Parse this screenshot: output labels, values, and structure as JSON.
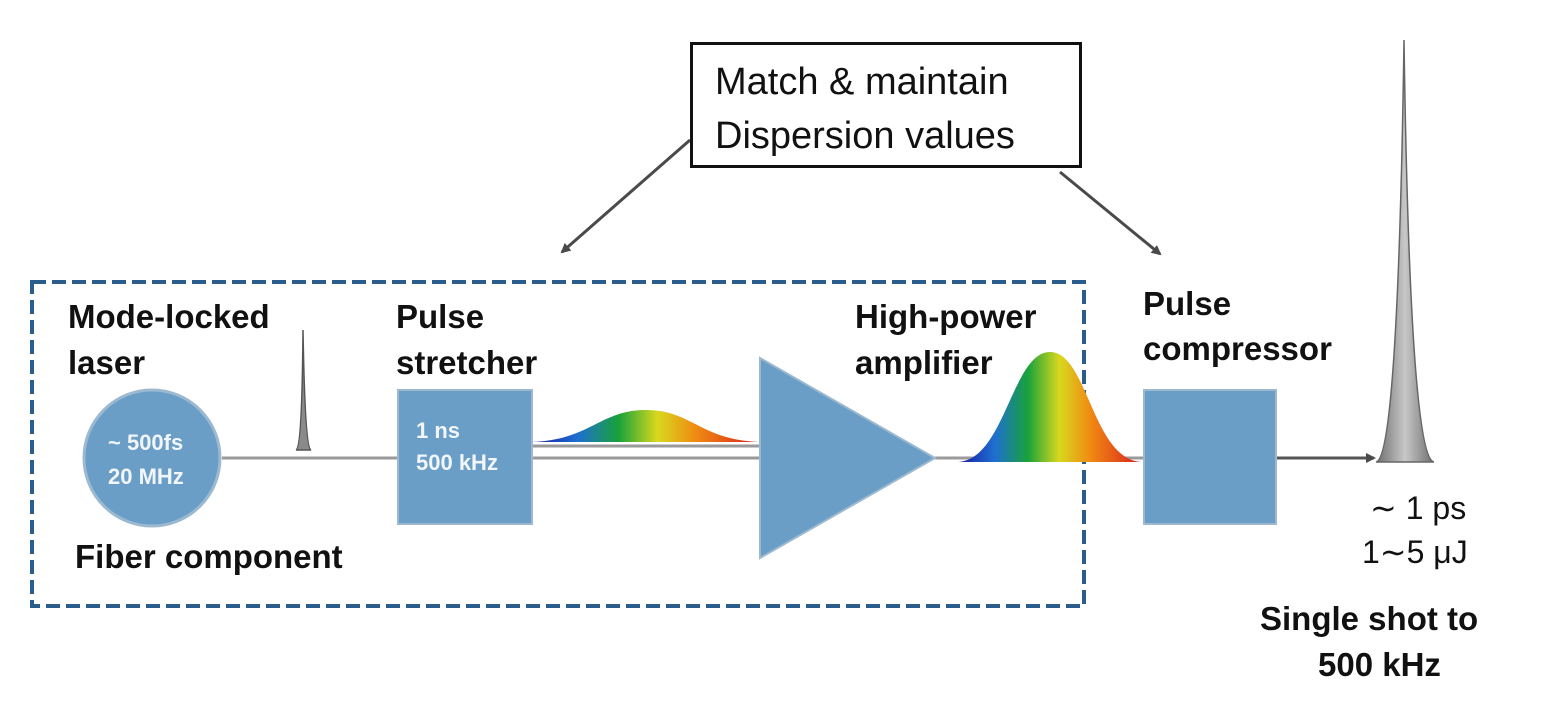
{
  "callout": {
    "line1": "Match & maintain",
    "line2": "Dispersion values"
  },
  "stages": {
    "laser": {
      "label_line1": "Mode-locked",
      "label_line2": "laser",
      "inner_line1": "~ 500fs",
      "inner_line2": "20 MHz"
    },
    "stretcher": {
      "label_line1": "Pulse",
      "label_line2": "stretcher",
      "inner_line1": "1 ns",
      "inner_line2": "500 kHz"
    },
    "amplifier": {
      "label_line1": "High-power",
      "label_line2": "amplifier"
    },
    "compressor": {
      "label_line1": "Pulse",
      "label_line2": "compressor"
    }
  },
  "fiber_group_label": "Fiber component",
  "output": {
    "duration": "∼ 1 ps",
    "energy": "1∼5 μJ",
    "rate_line1": "Single shot to",
    "rate_line2": "500 kHz"
  },
  "colors": {
    "component_fill": "#6a9ec7",
    "dashed_border": "#2a5d8c",
    "beam_line": "#8c8c8c",
    "output_pulse": "#9a9a9a"
  }
}
